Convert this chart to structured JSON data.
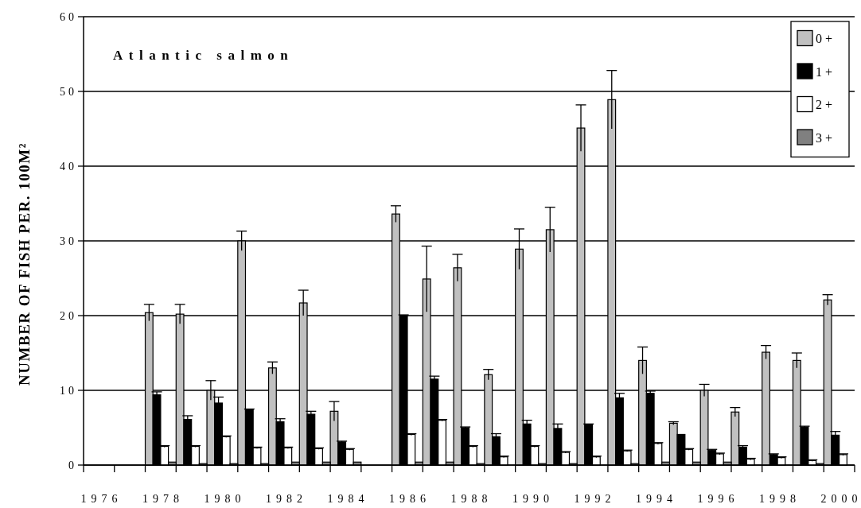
{
  "chart_data": {
    "type": "bar",
    "title": "Atlantic salmon",
    "ylabel": "NUMBER OF FISH PER. 100M²",
    "categories": [
      "1976",
      null,
      "1978",
      null,
      "1980",
      null,
      "1982",
      null,
      "1984",
      null,
      "1986",
      null,
      "1988",
      null,
      "1990",
      null,
      "1992",
      null,
      "1994",
      null,
      "1996",
      null,
      "1998",
      null,
      "2000"
    ],
    "series": [
      {
        "name": "0 +",
        "color": "#c0c0c0",
        "values": [
          null,
          null,
          20.4,
          20.2,
          10.0,
          30.0,
          13.0,
          21.7,
          7.2,
          null,
          33.6,
          24.9,
          26.4,
          12.1,
          28.9,
          31.5,
          45.1,
          48.9,
          14.0,
          5.6,
          10.0,
          7.1,
          15.1,
          14.0,
          22.1
        ],
        "errors": [
          null,
          null,
          1.1,
          1.3,
          1.3,
          1.3,
          0.8,
          1.7,
          1.3,
          null,
          1.1,
          4.4,
          1.8,
          0.7,
          2.7,
          3.0,
          3.1,
          3.9,
          1.8,
          0.2,
          0.8,
          0.6,
          0.9,
          1.0,
          0.7
        ]
      },
      {
        "name": "1 +",
        "color": "#000000",
        "values": [
          null,
          null,
          9.4,
          6.1,
          8.3,
          7.4,
          5.8,
          6.8,
          3.1,
          null,
          20.0,
          11.5,
          5.0,
          3.8,
          5.5,
          4.9,
          5.4,
          9.0,
          9.6,
          4.1,
          2.0,
          2.4,
          1.4,
          5.1,
          4.0
        ],
        "errors": [
          null,
          null,
          0.4,
          0.5,
          0.8,
          0.1,
          0.4,
          0.4,
          0.1,
          null,
          0.1,
          0.4,
          0.1,
          0.4,
          0.5,
          0.6,
          0.1,
          0.6,
          0.3,
          null,
          0.1,
          0.2,
          0.1,
          0.1,
          0.5
        ]
      },
      {
        "name": "2 +",
        "color": "#ffffff",
        "values": [
          null,
          null,
          2.5,
          2.5,
          3.8,
          2.3,
          2.3,
          2.2,
          2.1,
          null,
          4.1,
          6.0,
          2.5,
          1.1,
          2.5,
          1.7,
          1.1,
          1.9,
          2.9,
          2.1,
          1.5,
          0.8,
          1.0,
          0.6,
          1.4
        ],
        "errors": [
          null,
          null,
          0.1,
          0.1,
          0.1,
          0.1,
          0.1,
          0.1,
          0.1,
          null,
          0.1,
          0.1,
          0.1,
          0.1,
          0.1,
          0.1,
          0.1,
          0.1,
          0.1,
          0.1,
          0.1,
          0.1,
          0.1,
          0.1,
          0.1
        ]
      },
      {
        "name": "3 +",
        "color": "#808080",
        "values": [
          null,
          null,
          0.4,
          0.2,
          0.2,
          0.2,
          0.4,
          0.4,
          0.4,
          null,
          0.4,
          0.4,
          0.2,
          null,
          0.2,
          0.2,
          null,
          0.2,
          0.4,
          0.4,
          0.4,
          null,
          null,
          0.2,
          null
        ]
      }
    ],
    "ylim": [
      0,
      60
    ],
    "yticks": [
      0,
      10,
      20,
      30,
      40,
      50,
      60
    ],
    "grid": "y",
    "legend": "top right"
  }
}
